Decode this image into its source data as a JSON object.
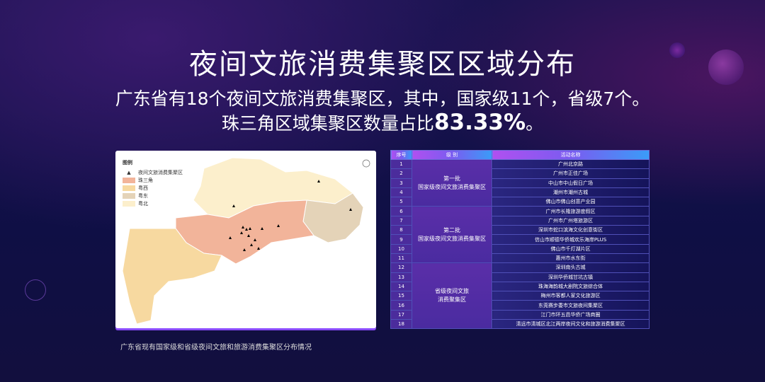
{
  "title": "夜间文旅消费集聚区区域分布",
  "subtitle_line1": "广东省有18个夜间文旅消费集聚区，其中，国家级11个，省级7个。",
  "subtitle_line2_prefix": "珠三角区域集聚区数量占比",
  "subtitle_line2_value": "83.33%",
  "subtitle_line2_suffix": "。",
  "map": {
    "legend_title": "图例",
    "legend": [
      {
        "label": "夜间文旅消费集聚区",
        "color": "#000000"
      },
      {
        "label": "珠三角",
        "color": "#f2b49a"
      },
      {
        "label": "粤西",
        "color": "#f7d9a0"
      },
      {
        "label": "粤东",
        "color": "#e4d3b8"
      },
      {
        "label": "粤北",
        "color": "#fcefcc"
      }
    ],
    "caption": "广东省现有国家级和省级夜间文旅和旅游消费集聚区分布情况"
  },
  "table": {
    "headers": [
      "序号",
      "级 别",
      "活动名称"
    ],
    "groups": [
      {
        "line1": "第一批",
        "line2": "国家级夜间文旅消费集聚区"
      },
      {
        "line1": "第二批",
        "line2": "国家级夜间文旅消费集聚区"
      },
      {
        "line1": "省级夜间文旅",
        "line2": "消费聚集区"
      }
    ],
    "rows": [
      {
        "no": "1",
        "name": "广州北京路"
      },
      {
        "no": "2",
        "name": "广州市正佳广场"
      },
      {
        "no": "3",
        "name": "中山市中山假日广场"
      },
      {
        "no": "4",
        "name": "潮州市潮州古城"
      },
      {
        "no": "5",
        "name": "佛山市佛山创意产业园"
      },
      {
        "no": "6",
        "name": "广州市长隆旅游度假区"
      },
      {
        "no": "7",
        "name": "广州市广州塔旅游区"
      },
      {
        "no": "8",
        "name": "深圳市蛇口滨海文化创意街区"
      },
      {
        "no": "9",
        "name": "信山市顺德华侨城欢乐海岸PLUS"
      },
      {
        "no": "10",
        "name": "佛山市千灯湖片区"
      },
      {
        "no": "11",
        "name": "惠州市水东街"
      },
      {
        "no": "12",
        "name": "深圳南头古城"
      },
      {
        "no": "13",
        "name": "深圳华侨城甘坑古镇"
      },
      {
        "no": "14",
        "name": "珠海海韵城大剧院文旅综合体"
      },
      {
        "no": "15",
        "name": "梅州市客都人家文化旅游区"
      },
      {
        "no": "16",
        "name": "东莞赛步委市文旅夜间集聚区"
      },
      {
        "no": "17",
        "name": "江门市环五邑华侨广场商圈"
      },
      {
        "no": "18",
        "name": "清远市清城区北江两岸夜间文化和旅游消费集聚区"
      }
    ]
  }
}
